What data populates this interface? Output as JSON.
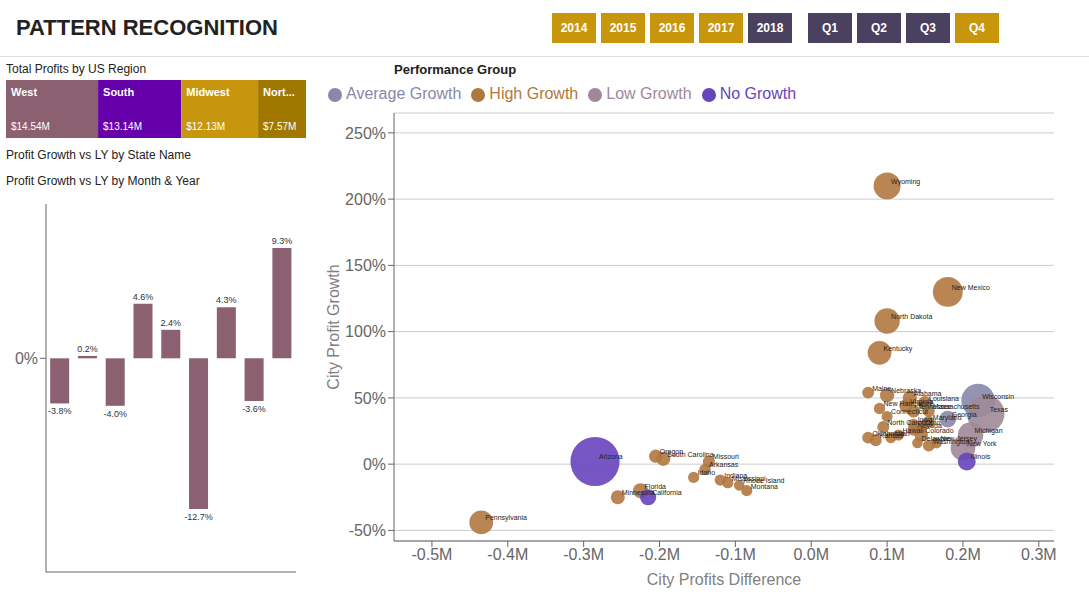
{
  "chart_data": [
    {
      "type": "filter",
      "categories": [
        "2014",
        "2015",
        "2016",
        "2017",
        "2018"
      ],
      "colors": [
        "#c8960c",
        "#c8960c",
        "#c8960c",
        "#c8960c",
        "#4a4060"
      ]
    },
    {
      "type": "filter",
      "categories": [
        "Q1",
        "Q2",
        "Q3",
        "Q4"
      ],
      "colors": [
        "#4a4060",
        "#4a4060",
        "#4a4060",
        "#c8960c"
      ]
    },
    {
      "type": "bar",
      "title": "Total Profits by US Region",
      "orientation": "horizontal",
      "stacked": true,
      "categories": [
        "West",
        "South",
        "Midwest",
        "Nort..."
      ],
      "values": [
        14.54,
        13.14,
        12.13,
        7.57
      ],
      "value_labels": [
        "$14.54M",
        "$13.14M",
        "$12.13M",
        "$7.57M"
      ],
      "colors": [
        "#8b6070",
        "#6600aa",
        "#c8960c",
        "#a07800"
      ],
      "data_labels": true,
      "tick_labels": false,
      "annotations": [
        "Profit Growth vs LY by State Name"
      ]
    },
    {
      "type": "bar",
      "title": "Profit Growth vs LY by Month & Year",
      "categories": [
        null,
        null,
        null,
        null,
        null,
        null,
        null,
        null,
        null
      ],
      "values": [
        -3.8,
        0.2,
        -4.0,
        4.6,
        2.4,
        -12.7,
        4.3,
        -3.6,
        9.3
      ],
      "value_labels": [
        "-3.8%",
        "0.2%",
        "-4.0%",
        "4.6%",
        "2.4%",
        "-12.7%",
        "4.3%",
        "-3.6%",
        "9.3%"
      ],
      "color": "#8b6070",
      "ylim": [
        -18,
        13
      ],
      "yticks": [
        {
          "value": 0,
          "label": "0%"
        }
      ],
      "data_labels": true,
      "tick_labels": "y",
      "grid": false
    },
    {
      "type": "scatter",
      "title": "PATTERN RECOGNITION",
      "annotations": [
        "Performance Group"
      ],
      "x_label": "City Profits Difference",
      "y_label": "City Profit Growth",
      "xlim": [
        -0.55,
        0.32
      ],
      "ylim": [
        -58,
        265
      ],
      "xticks": [
        {
          "value": -0.5,
          "label": "-0.5M"
        },
        {
          "value": -0.4,
          "label": "-0.4M"
        },
        {
          "value": -0.3,
          "label": "-0.3M"
        },
        {
          "value": -0.2,
          "label": "-0.2M"
        },
        {
          "value": -0.1,
          "label": "-0.1M"
        },
        {
          "value": 0.0,
          "label": "0.0M"
        },
        {
          "value": 0.1,
          "label": "0.1M"
        },
        {
          "value": 0.2,
          "label": "0.2M"
        },
        {
          "value": 0.3,
          "label": "0.3M"
        }
      ],
      "yticks": [
        {
          "value": -50,
          "label": "-50%"
        },
        {
          "value": 0,
          "label": "0%"
        },
        {
          "value": 50,
          "label": "50%"
        },
        {
          "value": 100,
          "label": "100%"
        },
        {
          "value": 150,
          "label": "150%"
        },
        {
          "value": 200,
          "label": "200%"
        },
        {
          "value": 250,
          "label": "250%"
        }
      ],
      "grid": "y",
      "legend": "top",
      "series": [
        {
          "name": "Average Growth",
          "color": "#8888aa",
          "labels": [
            "Wisconsin",
            "Georgia"
          ],
          "x": [
            0.22,
            0.18
          ],
          "values": [
            48,
            34
          ],
          "sizes": [
            2800,
            700
          ]
        },
        {
          "name": "High Growth",
          "color": "#b07840",
          "labels": [
            "Wyoming",
            "New Mexico",
            "North Dakota",
            "Kentucky",
            "Alabama",
            "Nebraska",
            "Louisiana",
            "Maine",
            "New Hampshire",
            "Massachusetts",
            "Connecticut",
            "Virginia",
            "Tennessee",
            "Iowa",
            "Ohio",
            "Maryland",
            "Nevada",
            "Colorado",
            "New Jersey",
            "Washington",
            "Delaware",
            "Oklahoma",
            "Kansas",
            "Hawaii",
            "Utah",
            "North Carolina",
            "South Carolina",
            "Oregon",
            "Missouri",
            "Arkansas",
            "Idaho",
            "Indiana",
            "Mississippi",
            "Rhode Island",
            "Montana",
            "Minnesota",
            "Florida",
            "Pennsylvania"
          ],
          "x": [
            0.1,
            0.18,
            0.1,
            0.09,
            0.13,
            0.1,
            0.15,
            0.075,
            0.09,
            0.155,
            0.1,
            0.125,
            0.135,
            0.135,
            0.145,
            0.155,
            0.135,
            0.145,
            0.165,
            0.155,
            0.14,
            0.075,
            0.085,
            0.115,
            0.105,
            0.095,
            -0.195,
            -0.205,
            -0.135,
            -0.14,
            -0.155,
            -0.12,
            -0.11,
            -0.095,
            -0.085,
            -0.255,
            -0.225,
            -0.435
          ],
          "values": [
            210,
            130,
            108,
            84,
            50,
            52,
            46,
            54,
            42,
            40,
            36,
            44,
            40,
            30,
            28,
            32,
            26,
            22,
            16,
            14,
            16,
            20,
            18,
            22,
            20,
            28,
            4,
            6,
            2,
            -4,
            -10,
            -12,
            -14,
            -16,
            -20,
            -25,
            -20,
            -44
          ],
          "sizes": [
            1800,
            2200,
            1600,
            1400,
            500,
            500,
            500,
            350,
            320,
            350,
            300,
            450,
            400,
            320,
            400,
            350,
            350,
            450,
            300,
            350,
            280,
            350,
            360,
            300,
            300,
            360,
            500,
            440,
            360,
            320,
            310,
            310,
            310,
            280,
            310,
            480,
            560,
            1400
          ]
        },
        {
          "name": "Low Growth",
          "color": "#a08898",
          "labels": [
            "Texas",
            "Michigan",
            "New York"
          ],
          "x": [
            0.23,
            0.21,
            0.2
          ],
          "values": [
            38,
            22,
            12
          ],
          "sizes": [
            3500,
            1600,
            1500
          ]
        },
        {
          "name": "No Growth",
          "color": "#6644bb",
          "labels": [
            "Illinois",
            "California",
            "Arizona"
          ],
          "x": [
            0.205,
            -0.215,
            -0.285
          ],
          "values": [
            2,
            -25,
            2
          ],
          "sizes": [
            800,
            650,
            6000
          ]
        }
      ]
    }
  ]
}
